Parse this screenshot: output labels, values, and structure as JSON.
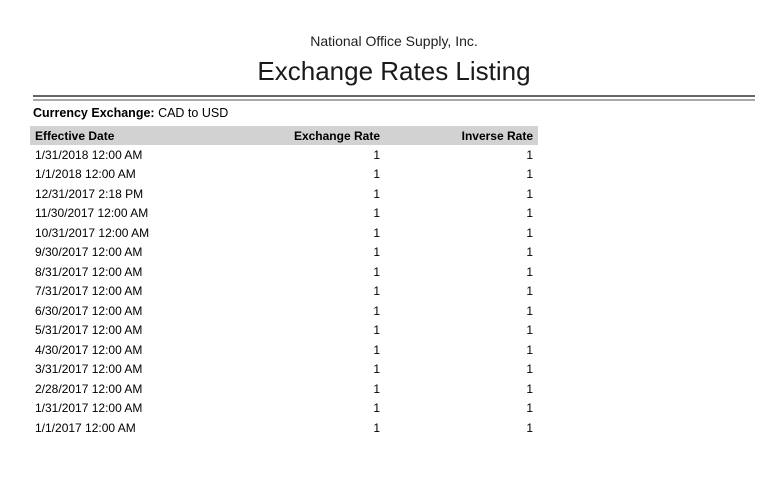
{
  "header": {
    "company": "National Office Supply, Inc.",
    "title": "Exchange Rates Listing"
  },
  "filter": {
    "label": "Currency Exchange:",
    "value": "CAD to USD"
  },
  "table": {
    "columns": [
      "Effective Date",
      "Exchange Rate",
      "Inverse Rate"
    ],
    "rows": [
      {
        "date": "1/31/2018 12:00 AM",
        "rate": "1",
        "inverse": "1"
      },
      {
        "date": "1/1/2018 12:00 AM",
        "rate": "1",
        "inverse": "1"
      },
      {
        "date": "12/31/2017 2:18 PM",
        "rate": "1",
        "inverse": "1"
      },
      {
        "date": "11/30/2017 12:00 AM",
        "rate": "1",
        "inverse": "1"
      },
      {
        "date": "10/31/2017 12:00 AM",
        "rate": "1",
        "inverse": "1"
      },
      {
        "date": "9/30/2017 12:00 AM",
        "rate": "1",
        "inverse": "1"
      },
      {
        "date": "8/31/2017 12:00 AM",
        "rate": "1",
        "inverse": "1"
      },
      {
        "date": "7/31/2017 12:00 AM",
        "rate": "1",
        "inverse": "1"
      },
      {
        "date": "6/30/2017 12:00 AM",
        "rate": "1",
        "inverse": "1"
      },
      {
        "date": "5/31/2017 12:00 AM",
        "rate": "1",
        "inverse": "1"
      },
      {
        "date": "4/30/2017 12:00 AM",
        "rate": "1",
        "inverse": "1"
      },
      {
        "date": "3/31/2017 12:00 AM",
        "rate": "1",
        "inverse": "1"
      },
      {
        "date": "2/28/2017 12:00 AM",
        "rate": "1",
        "inverse": "1"
      },
      {
        "date": "1/31/2017 12:00 AM",
        "rate": "1",
        "inverse": "1"
      },
      {
        "date": "1/1/2017 12:00 AM",
        "rate": "1",
        "inverse": "1"
      }
    ]
  },
  "colors": {
    "table_header_bg": "#d2d2d2",
    "separator_top": "#666666",
    "separator_bottom": "#a8a8a8"
  }
}
